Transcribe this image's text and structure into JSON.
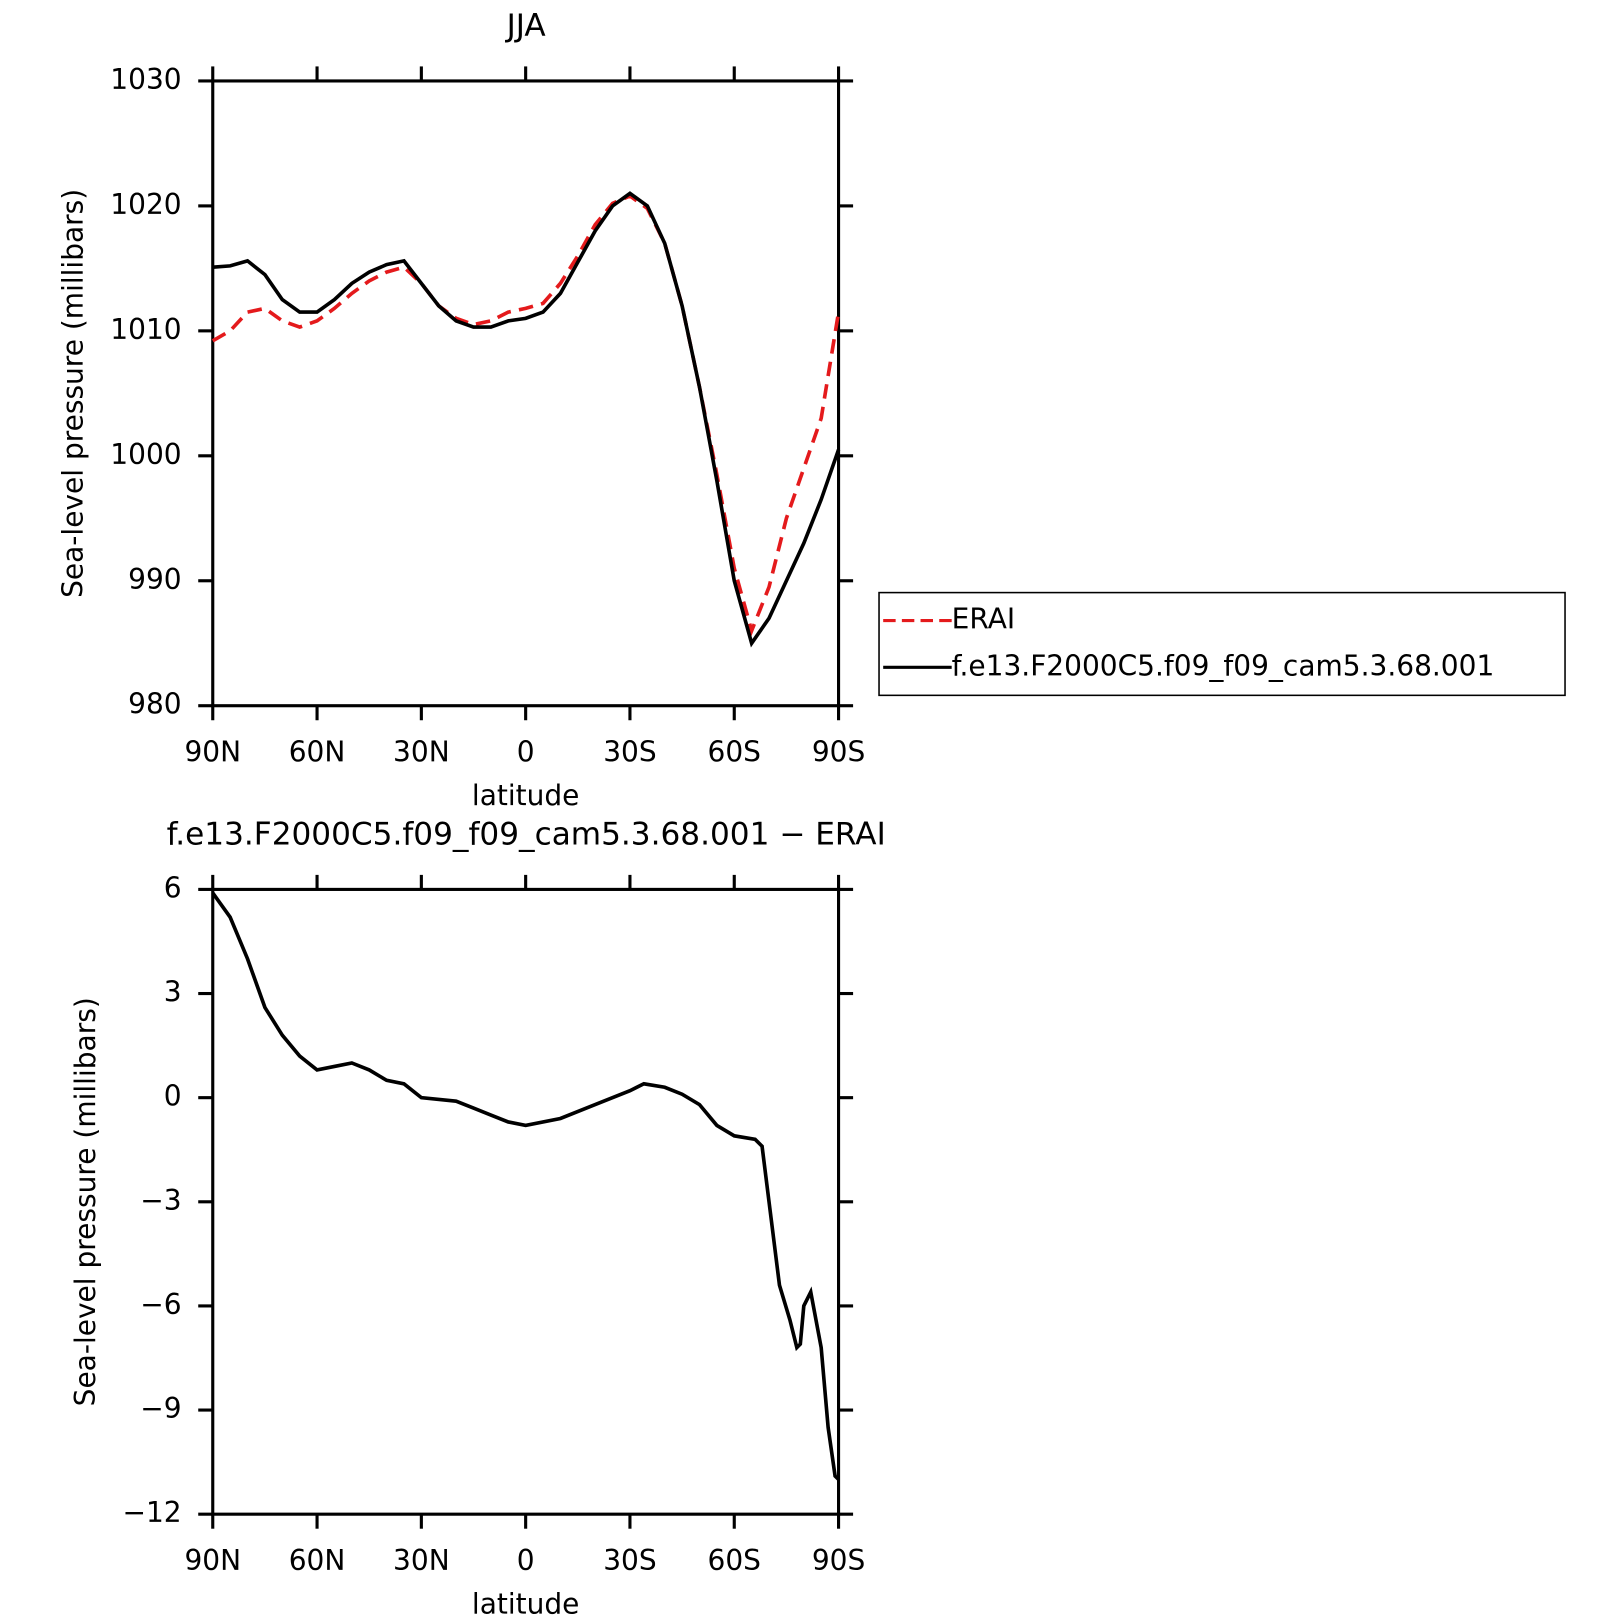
{
  "chart_data": [
    {
      "type": "line",
      "title": "JJA",
      "xlabel": "latitude",
      "ylabel": "Sea-level pressure (millibars)",
      "x": [
        90,
        85,
        80,
        75,
        70,
        65,
        60,
        55,
        50,
        45,
        40,
        35,
        30,
        25,
        20,
        15,
        10,
        5,
        0,
        -5,
        -10,
        -15,
        -20,
        -25,
        -30,
        -35,
        -40,
        -45,
        -50,
        -55,
        -60,
        -65,
        -70,
        -75,
        -80,
        -85,
        -90
      ],
      "series": [
        {
          "name": "ERAI",
          "color": "#e41a1c",
          "dash": true,
          "values": [
            1009.2,
            1010.0,
            1011.5,
            1011.8,
            1010.8,
            1010.3,
            1010.8,
            1011.8,
            1013.0,
            1014.0,
            1014.7,
            1015.1,
            1013.8,
            1012.0,
            1011.0,
            1010.5,
            1010.8,
            1011.5,
            1011.8,
            1012.2,
            1013.8,
            1016.0,
            1018.5,
            1020.2,
            1020.8,
            1019.8,
            1017.0,
            1012.0,
            1005.5,
            998.5,
            991.0,
            986.0,
            989.5,
            995.0,
            999.0,
            1003.0,
            1011.5
          ]
        },
        {
          "name": "f.e13.F2000C5.f09_f09_cam5.3.68.001",
          "color": "#000000",
          "dash": false,
          "values": [
            1015.1,
            1015.2,
            1015.6,
            1014.5,
            1012.5,
            1011.5,
            1011.5,
            1012.5,
            1013.8,
            1014.7,
            1015.3,
            1015.6,
            1013.8,
            1012.0,
            1010.8,
            1010.3,
            1010.3,
            1010.8,
            1011.0,
            1011.5,
            1013.0,
            1015.5,
            1018.0,
            1020.0,
            1021.0,
            1020.0,
            1017.0,
            1012.0,
            1005.5,
            998.0,
            990.0,
            985.0,
            987.0,
            990.0,
            993.0,
            996.5,
            1000.5
          ]
        }
      ],
      "xlim": [
        90,
        -90
      ],
      "xticks": [
        {
          "value": 90,
          "label": "90N"
        },
        {
          "value": 60,
          "label": "60N"
        },
        {
          "value": 30,
          "label": "30N"
        },
        0,
        {
          "value": -30,
          "label": "30S"
        },
        {
          "value": -60,
          "label": "60S"
        },
        {
          "value": -90,
          "label": "90S"
        }
      ],
      "ylim": [
        980,
        1030
      ],
      "yticks": [
        980,
        990,
        1000,
        1010,
        1020,
        1030
      ],
      "legend": "right"
    },
    {
      "type": "line",
      "title": "f.e13.F2000C5.f09_f09_cam5.3.68.001 − ERAI",
      "xlabel": "latitude",
      "ylabel": "Sea-level pressure (millibars)",
      "x": [
        90,
        85,
        80,
        75,
        70,
        65,
        60,
        55,
        50,
        45,
        40,
        35,
        30,
        20,
        15,
        10,
        5,
        0,
        -10,
        -20,
        -30,
        -34,
        -40,
        -45,
        -50,
        -55,
        -60,
        -66,
        -68,
        -70,
        -73,
        -76,
        -78,
        -79,
        -80,
        -82,
        -85,
        -87,
        -89,
        -90
      ],
      "color": "#000000",
      "values": [
        5.9,
        5.2,
        4.0,
        2.6,
        1.8,
        1.2,
        0.8,
        0.9,
        1.0,
        0.8,
        0.5,
        0.4,
        0.0,
        -0.1,
        -0.3,
        -0.5,
        -0.7,
        -0.8,
        -0.6,
        -0.2,
        0.2,
        0.4,
        0.3,
        0.1,
        -0.2,
        -0.8,
        -1.1,
        -1.2,
        -1.4,
        -3.0,
        -5.4,
        -6.4,
        -7.2,
        -7.1,
        -6.0,
        -5.6,
        -7.2,
        -9.5,
        -10.9,
        -11.0
      ],
      "xlim": [
        90,
        -90
      ],
      "xticks": [
        {
          "value": 90,
          "label": "90N"
        },
        {
          "value": 60,
          "label": "60N"
        },
        {
          "value": 30,
          "label": "30N"
        },
        0,
        {
          "value": -30,
          "label": "30S"
        },
        {
          "value": -60,
          "label": "60S"
        },
        {
          "value": -90,
          "label": "90S"
        }
      ],
      "ylim": [
        -12,
        6
      ],
      "yticks": [
        {
          "value": -12,
          "label": "−12"
        },
        {
          "value": -9,
          "label": "−9"
        },
        {
          "value": -6,
          "label": "−6"
        },
        {
          "value": -3,
          "label": "−3"
        },
        0,
        3,
        6
      ]
    }
  ]
}
